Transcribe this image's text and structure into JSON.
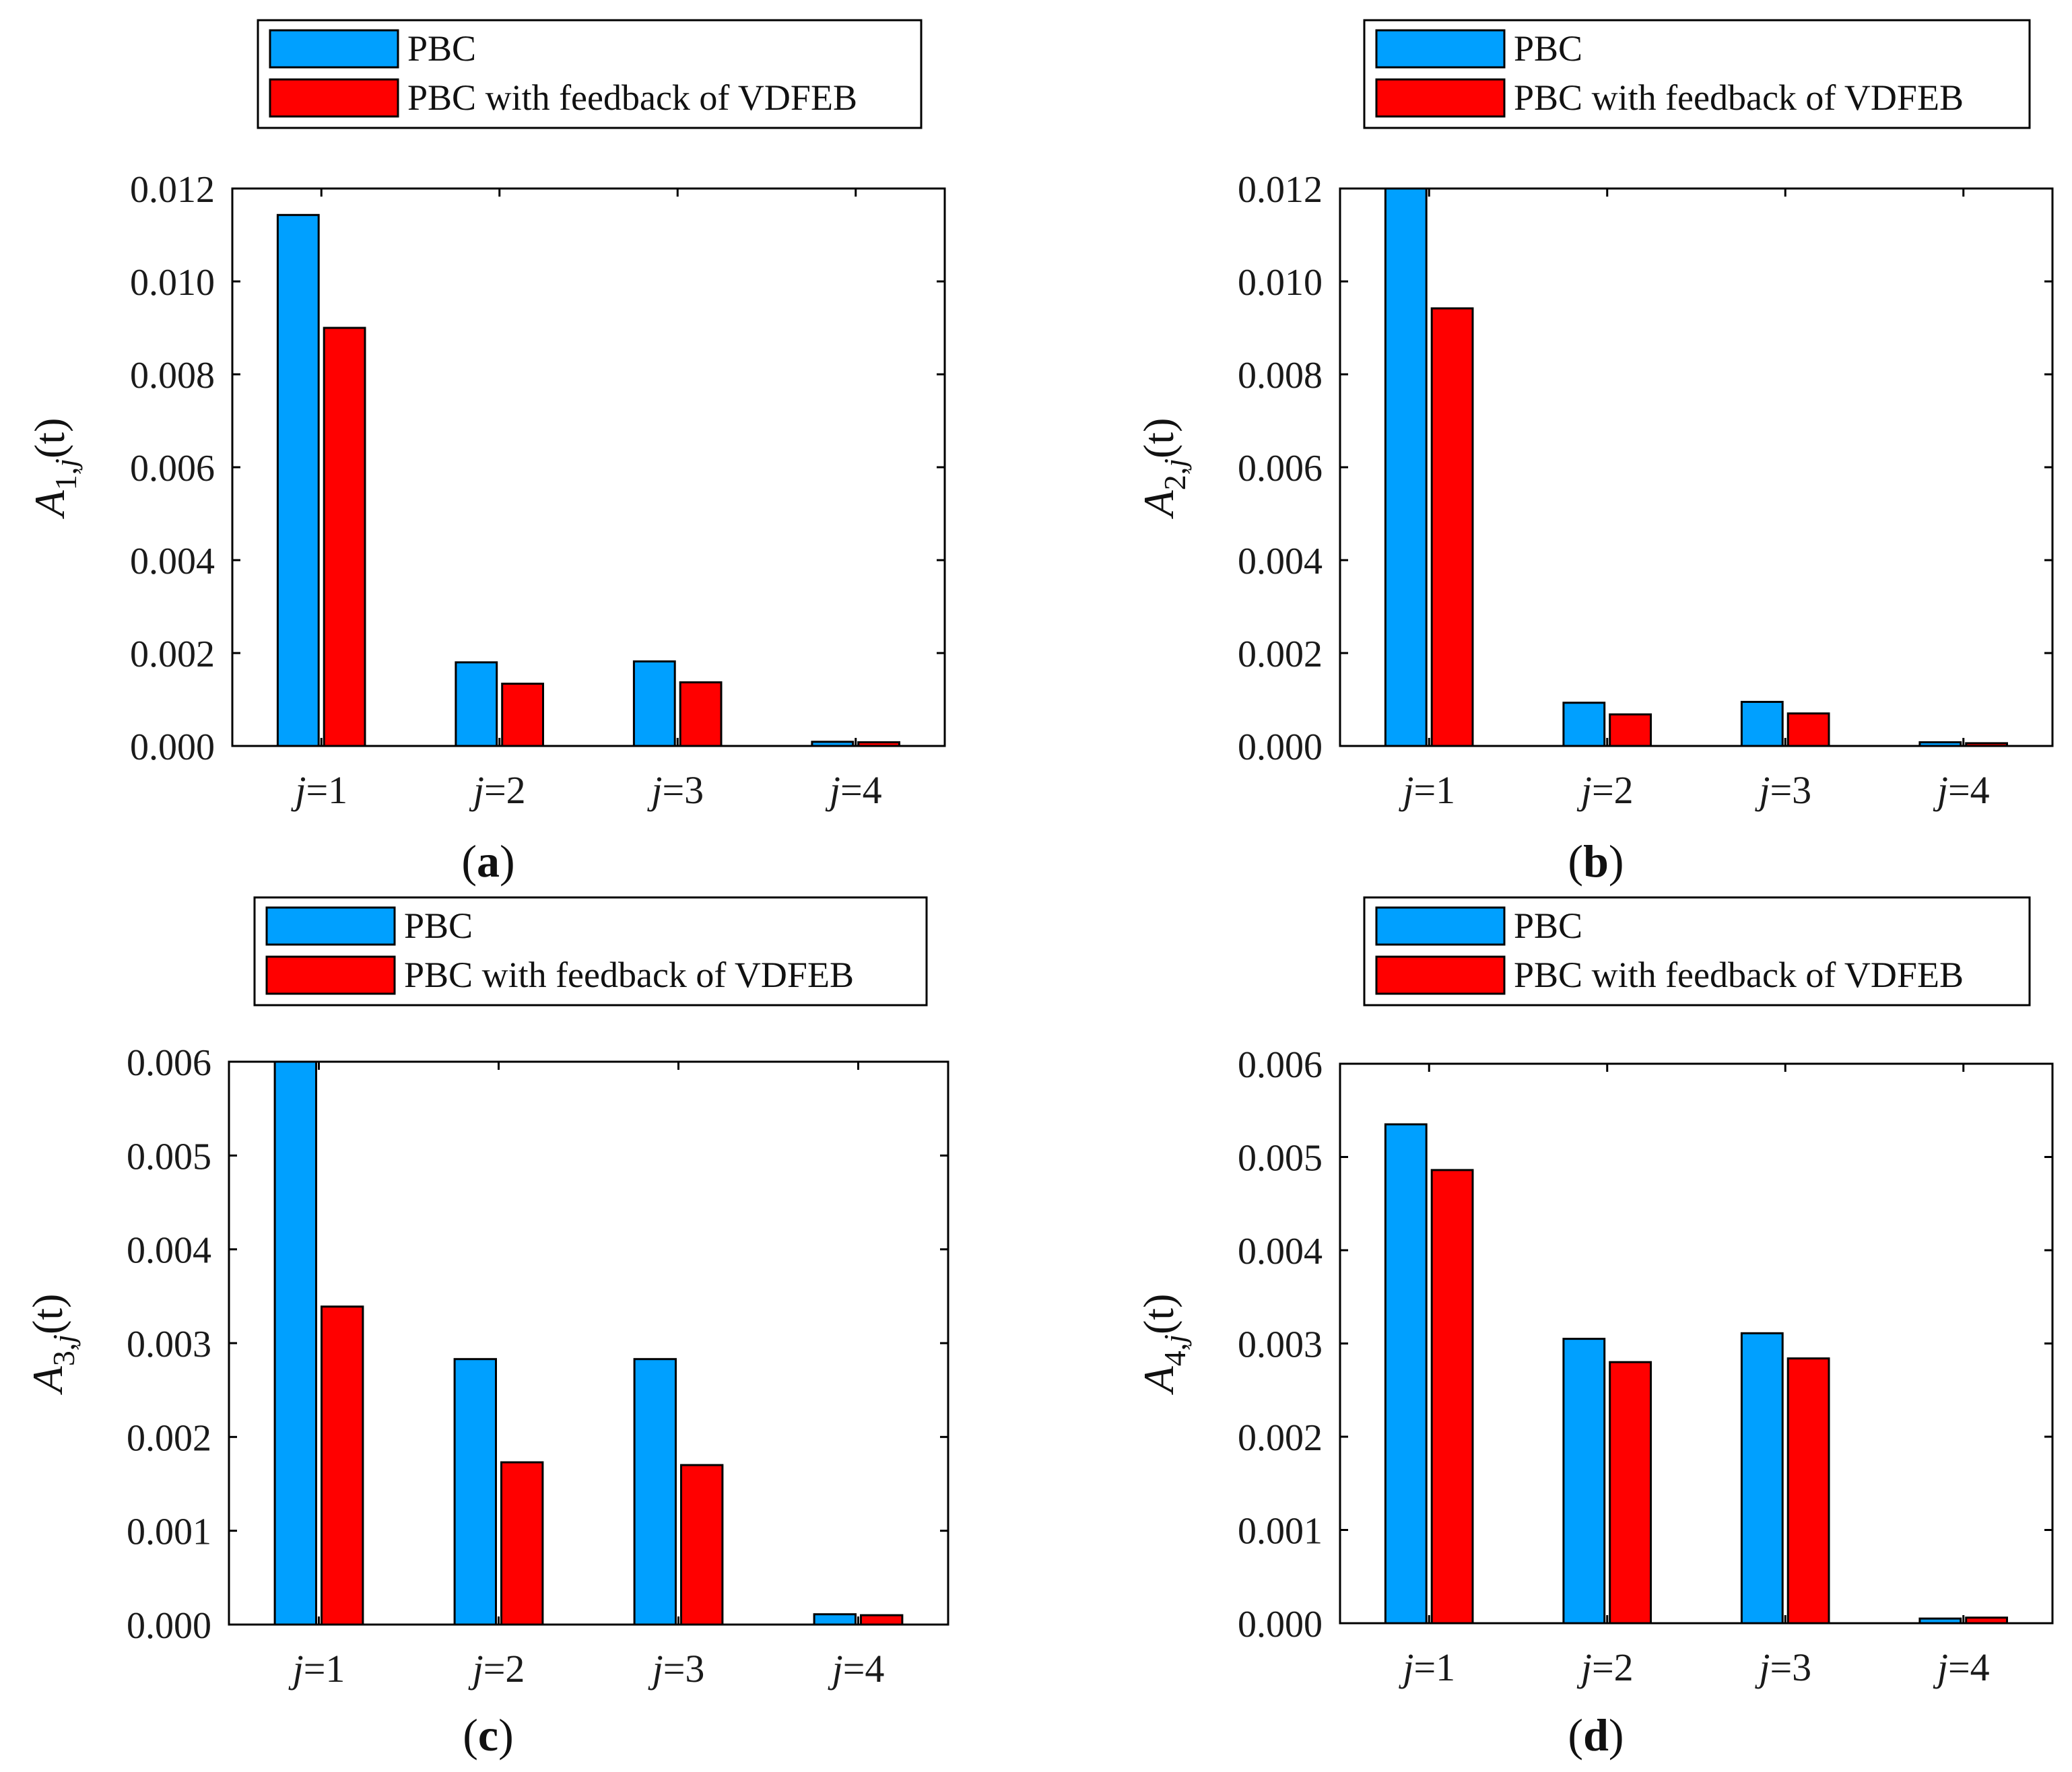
{
  "colors": {
    "series1": "#00A0FF",
    "series2": "#FF0000",
    "axis": "#000000",
    "text": "#1a1a1a"
  },
  "chart_data": [
    {
      "type": "bar",
      "panel_label": "a",
      "legend": {
        "placement": "top-center",
        "entries": [
          "PBC",
          "PBC with feedback of VDFEB"
        ]
      },
      "ylabel": {
        "letter": "A",
        "sub": "1,",
        "sub_italic": "j",
        "suffix": "(t)"
      },
      "categories": [
        {
          "var": "j",
          "rest": "=1"
        },
        {
          "var": "j",
          "rest": "=2"
        },
        {
          "var": "j",
          "rest": "=3"
        },
        {
          "var": "j",
          "rest": "=4"
        }
      ],
      "ylim": [
        0,
        0.012
      ],
      "yticks": [
        0,
        0.002,
        0.004,
        0.006,
        0.008,
        0.01,
        0.012
      ],
      "ytick_labels": [
        "0.000",
        "0.002",
        "0.004",
        "0.006",
        "0.008",
        "0.010",
        "0.012"
      ],
      "series": [
        {
          "name": "PBC",
          "values": [
            0.01143,
            0.0018,
            0.00182,
            9e-05
          ]
        },
        {
          "name": "PBC with feedback of VDFEB",
          "values": [
            0.009,
            0.00134,
            0.00137,
            8e-05
          ]
        }
      ]
    },
    {
      "type": "bar",
      "panel_label": "b",
      "legend": {
        "placement": "top-center",
        "entries": [
          "PBC",
          "PBC with feedback of VDFEB"
        ]
      },
      "ylabel": {
        "letter": "A",
        "sub": "2,",
        "sub_italic": "j",
        "suffix": "(t)"
      },
      "categories": [
        {
          "var": "j",
          "rest": "=1"
        },
        {
          "var": "j",
          "rest": "=2"
        },
        {
          "var": "j",
          "rest": "=3"
        },
        {
          "var": "j",
          "rest": "=4"
        }
      ],
      "ylim": [
        0,
        0.012
      ],
      "yticks": [
        0,
        0.002,
        0.004,
        0.006,
        0.008,
        0.01,
        0.012
      ],
      "ytick_labels": [
        "0.000",
        "0.002",
        "0.004",
        "0.006",
        "0.008",
        "0.010",
        "0.012"
      ],
      "series": [
        {
          "name": "PBC",
          "values": [
            0.012,
            0.00093,
            0.00095,
            8e-05
          ]
        },
        {
          "name": "PBC with feedback of VDFEB",
          "values": [
            0.00942,
            0.00068,
            0.0007,
            6e-05
          ]
        }
      ]
    },
    {
      "type": "bar",
      "panel_label": "c",
      "legend": {
        "placement": "top-center",
        "entries": [
          "PBC",
          "PBC with feedback of VDFEB"
        ]
      },
      "ylabel": {
        "letter": "A",
        "sub": "3,",
        "sub_italic": "j",
        "suffix": "(t)"
      },
      "categories": [
        {
          "var": "j",
          "rest": "=1"
        },
        {
          "var": "j",
          "rest": "=2"
        },
        {
          "var": "j",
          "rest": "=3"
        },
        {
          "var": "j",
          "rest": "=4"
        }
      ],
      "ylim": [
        0,
        0.006
      ],
      "yticks": [
        0,
        0.001,
        0.002,
        0.003,
        0.004,
        0.005,
        0.006
      ],
      "ytick_labels": [
        "0.000",
        "0.001",
        "0.002",
        "0.003",
        "0.004",
        "0.005",
        "0.006"
      ],
      "series": [
        {
          "name": "PBC",
          "values": [
            0.0062,
            0.00283,
            0.00283,
            0.00011
          ]
        },
        {
          "name": "PBC with feedback of VDFEB",
          "values": [
            0.00339,
            0.00173,
            0.0017,
            0.0001
          ]
        }
      ]
    },
    {
      "type": "bar",
      "panel_label": "d",
      "legend": {
        "placement": "top-center",
        "entries": [
          "PBC",
          "PBC with feedback of VDFEB"
        ]
      },
      "ylabel": {
        "letter": "A",
        "sub": "4,",
        "sub_italic": "j",
        "suffix": "(t)"
      },
      "categories": [
        {
          "var": "j",
          "rest": "=1"
        },
        {
          "var": "j",
          "rest": "=2"
        },
        {
          "var": "j",
          "rest": "=3"
        },
        {
          "var": "j",
          "rest": "=4"
        }
      ],
      "ylim": [
        0,
        0.006
      ],
      "yticks": [
        0,
        0.001,
        0.002,
        0.003,
        0.004,
        0.005,
        0.006
      ],
      "ytick_labels": [
        "0.000",
        "0.001",
        "0.002",
        "0.003",
        "0.004",
        "0.005",
        "0.006"
      ],
      "series": [
        {
          "name": "PBC",
          "values": [
            0.00535,
            0.00305,
            0.00311,
            5e-05
          ]
        },
        {
          "name": "PBC with feedback of VDFEB",
          "values": [
            0.00486,
            0.0028,
            0.00284,
            6e-05
          ]
        }
      ]
    }
  ]
}
